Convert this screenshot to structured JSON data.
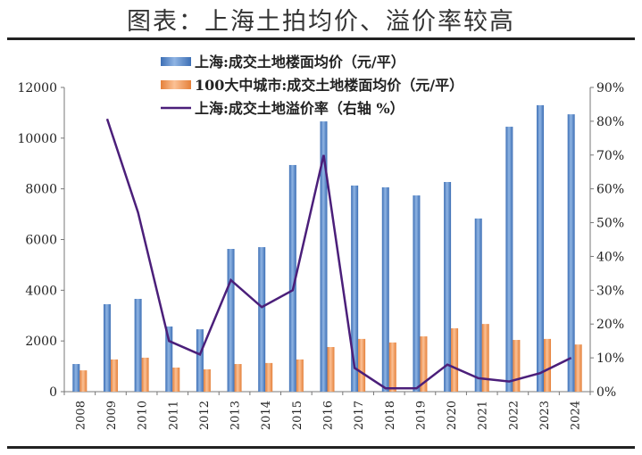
{
  "chart_data": {
    "type": "bar",
    "title": "图表：上海土拍均价、溢价率较高",
    "categories": [
      "2008",
      "2009",
      "2010",
      "2011",
      "2012",
      "2013",
      "2014",
      "2015",
      "2016",
      "2017",
      "2018",
      "2019",
      "2020",
      "2021",
      "2022",
      "2023",
      "2024"
    ],
    "series": [
      {
        "name": "上海:成交土地楼面均价（元/平）",
        "type": "bar",
        "axis": "left",
        "color": "#5b8fd0",
        "values": [
          1090,
          3450,
          3660,
          2570,
          2460,
          5630,
          5700,
          8940,
          10660,
          8130,
          8060,
          7740,
          8270,
          6830,
          10450,
          11300,
          10940
        ]
      },
      {
        "name": "100大中城市:成交土地楼面均价（元/平）",
        "type": "bar",
        "axis": "left",
        "color": "#f0a060",
        "values": [
          840,
          1270,
          1340,
          950,
          880,
          1090,
          1130,
          1270,
          1760,
          2080,
          1940,
          2180,
          2500,
          2670,
          2040,
          2080,
          1860
        ]
      },
      {
        "name": "上海:成交土地溢价率（右轴 %）",
        "type": "line",
        "axis": "right",
        "color": "#4b1f7a",
        "values": [
          null,
          80.7,
          53,
          15,
          11,
          33,
          25,
          30,
          70,
          7,
          1,
          1,
          8,
          4,
          3,
          5.5,
          10
        ]
      }
    ],
    "ylim": [
      0,
      12000
    ],
    "yticks": [
      "0",
      "2000",
      "4000",
      "6000",
      "8000",
      "10000",
      "12000"
    ],
    "y2lim": [
      0,
      90
    ],
    "y2ticks": [
      "0%",
      "10%",
      "20%",
      "30%",
      "40%",
      "50%",
      "60%",
      "70%",
      "80%",
      "90%"
    ],
    "legend": "top-center",
    "grid": false
  }
}
